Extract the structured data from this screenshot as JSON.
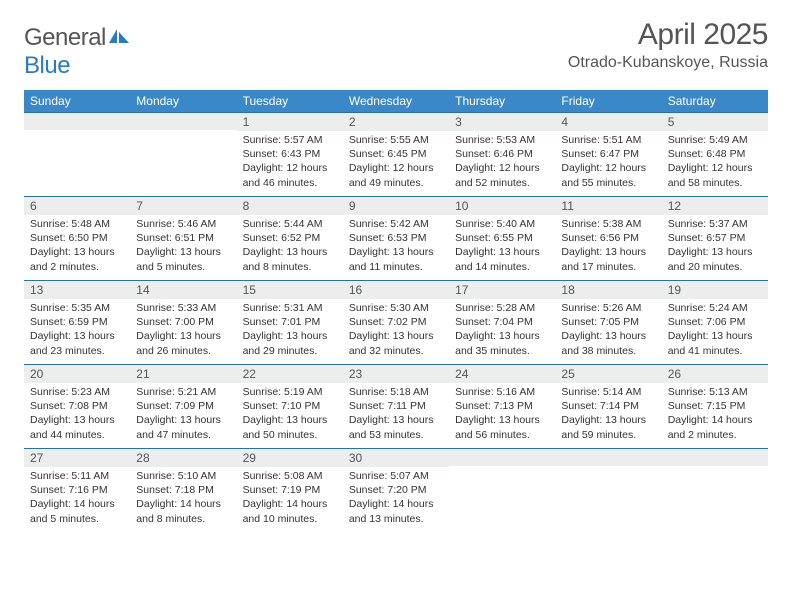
{
  "logo": {
    "text1": "General",
    "text2": "Blue"
  },
  "title": "April 2025",
  "location": "Otrado-Kubanskoye, Russia",
  "colors": {
    "header_bg": "#3b88c8",
    "header_text": "#ffffff",
    "daynum_bg": "#eceded",
    "border": "#2b6fa8",
    "text": "#333333",
    "title_text": "#555555"
  },
  "weekdays": [
    "Sunday",
    "Monday",
    "Tuesday",
    "Wednesday",
    "Thursday",
    "Friday",
    "Saturday"
  ],
  "weeks": [
    [
      null,
      null,
      {
        "n": "1",
        "sr": "Sunrise: 5:57 AM",
        "ss": "Sunset: 6:43 PM",
        "d1": "Daylight: 12 hours",
        "d2": "and 46 minutes."
      },
      {
        "n": "2",
        "sr": "Sunrise: 5:55 AM",
        "ss": "Sunset: 6:45 PM",
        "d1": "Daylight: 12 hours",
        "d2": "and 49 minutes."
      },
      {
        "n": "3",
        "sr": "Sunrise: 5:53 AM",
        "ss": "Sunset: 6:46 PM",
        "d1": "Daylight: 12 hours",
        "d2": "and 52 minutes."
      },
      {
        "n": "4",
        "sr": "Sunrise: 5:51 AM",
        "ss": "Sunset: 6:47 PM",
        "d1": "Daylight: 12 hours",
        "d2": "and 55 minutes."
      },
      {
        "n": "5",
        "sr": "Sunrise: 5:49 AM",
        "ss": "Sunset: 6:48 PM",
        "d1": "Daylight: 12 hours",
        "d2": "and 58 minutes."
      }
    ],
    [
      {
        "n": "6",
        "sr": "Sunrise: 5:48 AM",
        "ss": "Sunset: 6:50 PM",
        "d1": "Daylight: 13 hours",
        "d2": "and 2 minutes."
      },
      {
        "n": "7",
        "sr": "Sunrise: 5:46 AM",
        "ss": "Sunset: 6:51 PM",
        "d1": "Daylight: 13 hours",
        "d2": "and 5 minutes."
      },
      {
        "n": "8",
        "sr": "Sunrise: 5:44 AM",
        "ss": "Sunset: 6:52 PM",
        "d1": "Daylight: 13 hours",
        "d2": "and 8 minutes."
      },
      {
        "n": "9",
        "sr": "Sunrise: 5:42 AM",
        "ss": "Sunset: 6:53 PM",
        "d1": "Daylight: 13 hours",
        "d2": "and 11 minutes."
      },
      {
        "n": "10",
        "sr": "Sunrise: 5:40 AM",
        "ss": "Sunset: 6:55 PM",
        "d1": "Daylight: 13 hours",
        "d2": "and 14 minutes."
      },
      {
        "n": "11",
        "sr": "Sunrise: 5:38 AM",
        "ss": "Sunset: 6:56 PM",
        "d1": "Daylight: 13 hours",
        "d2": "and 17 minutes."
      },
      {
        "n": "12",
        "sr": "Sunrise: 5:37 AM",
        "ss": "Sunset: 6:57 PM",
        "d1": "Daylight: 13 hours",
        "d2": "and 20 minutes."
      }
    ],
    [
      {
        "n": "13",
        "sr": "Sunrise: 5:35 AM",
        "ss": "Sunset: 6:59 PM",
        "d1": "Daylight: 13 hours",
        "d2": "and 23 minutes."
      },
      {
        "n": "14",
        "sr": "Sunrise: 5:33 AM",
        "ss": "Sunset: 7:00 PM",
        "d1": "Daylight: 13 hours",
        "d2": "and 26 minutes."
      },
      {
        "n": "15",
        "sr": "Sunrise: 5:31 AM",
        "ss": "Sunset: 7:01 PM",
        "d1": "Daylight: 13 hours",
        "d2": "and 29 minutes."
      },
      {
        "n": "16",
        "sr": "Sunrise: 5:30 AM",
        "ss": "Sunset: 7:02 PM",
        "d1": "Daylight: 13 hours",
        "d2": "and 32 minutes."
      },
      {
        "n": "17",
        "sr": "Sunrise: 5:28 AM",
        "ss": "Sunset: 7:04 PM",
        "d1": "Daylight: 13 hours",
        "d2": "and 35 minutes."
      },
      {
        "n": "18",
        "sr": "Sunrise: 5:26 AM",
        "ss": "Sunset: 7:05 PM",
        "d1": "Daylight: 13 hours",
        "d2": "and 38 minutes."
      },
      {
        "n": "19",
        "sr": "Sunrise: 5:24 AM",
        "ss": "Sunset: 7:06 PM",
        "d1": "Daylight: 13 hours",
        "d2": "and 41 minutes."
      }
    ],
    [
      {
        "n": "20",
        "sr": "Sunrise: 5:23 AM",
        "ss": "Sunset: 7:08 PM",
        "d1": "Daylight: 13 hours",
        "d2": "and 44 minutes."
      },
      {
        "n": "21",
        "sr": "Sunrise: 5:21 AM",
        "ss": "Sunset: 7:09 PM",
        "d1": "Daylight: 13 hours",
        "d2": "and 47 minutes."
      },
      {
        "n": "22",
        "sr": "Sunrise: 5:19 AM",
        "ss": "Sunset: 7:10 PM",
        "d1": "Daylight: 13 hours",
        "d2": "and 50 minutes."
      },
      {
        "n": "23",
        "sr": "Sunrise: 5:18 AM",
        "ss": "Sunset: 7:11 PM",
        "d1": "Daylight: 13 hours",
        "d2": "and 53 minutes."
      },
      {
        "n": "24",
        "sr": "Sunrise: 5:16 AM",
        "ss": "Sunset: 7:13 PM",
        "d1": "Daylight: 13 hours",
        "d2": "and 56 minutes."
      },
      {
        "n": "25",
        "sr": "Sunrise: 5:14 AM",
        "ss": "Sunset: 7:14 PM",
        "d1": "Daylight: 13 hours",
        "d2": "and 59 minutes."
      },
      {
        "n": "26",
        "sr": "Sunrise: 5:13 AM",
        "ss": "Sunset: 7:15 PM",
        "d1": "Daylight: 14 hours",
        "d2": "and 2 minutes."
      }
    ],
    [
      {
        "n": "27",
        "sr": "Sunrise: 5:11 AM",
        "ss": "Sunset: 7:16 PM",
        "d1": "Daylight: 14 hours",
        "d2": "and 5 minutes."
      },
      {
        "n": "28",
        "sr": "Sunrise: 5:10 AM",
        "ss": "Sunset: 7:18 PM",
        "d1": "Daylight: 14 hours",
        "d2": "and 8 minutes."
      },
      {
        "n": "29",
        "sr": "Sunrise: 5:08 AM",
        "ss": "Sunset: 7:19 PM",
        "d1": "Daylight: 14 hours",
        "d2": "and 10 minutes."
      },
      {
        "n": "30",
        "sr": "Sunrise: 5:07 AM",
        "ss": "Sunset: 7:20 PM",
        "d1": "Daylight: 14 hours",
        "d2": "and 13 minutes."
      },
      null,
      null,
      null
    ]
  ]
}
